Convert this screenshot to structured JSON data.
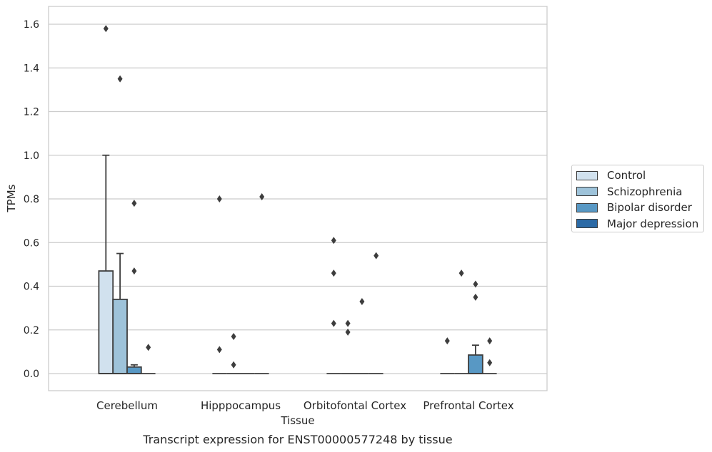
{
  "chart_data": {
    "type": "box",
    "title": "Transcript expression for ENST00000577248 by tissue",
    "xlabel": "Tissue",
    "ylabel": "TPMs",
    "ylim": [
      -0.08,
      1.66
    ],
    "yticks": [
      0.0,
      0.2,
      0.4,
      0.6,
      0.8,
      1.0,
      1.2,
      1.4,
      1.6
    ],
    "ytick_labels": [
      "0.0",
      "0.2",
      "0.4",
      "0.6",
      "0.8",
      "1.0",
      "1.2",
      "1.4",
      "1.6"
    ],
    "grid": "horizontal",
    "legend_position": "right",
    "categories": [
      "Cerebellum",
      "Hipppocampus",
      "Orbitofontal Cortex",
      "Prefrontal Cortex"
    ],
    "series": [
      {
        "name": "Control",
        "color": "#d1e1ee",
        "boxes": [
          {
            "q1": 0,
            "median": 0,
            "q3": 0.47,
            "whisker_low": 0,
            "whisker_high": 1.0,
            "outliers": [
              1.58
            ]
          },
          {
            "q1": 0,
            "median": 0,
            "q3": 0,
            "whisker_low": 0,
            "whisker_high": 0,
            "outliers": [
              0.8,
              0.11
            ]
          },
          {
            "q1": 0,
            "median": 0,
            "q3": 0,
            "whisker_low": 0,
            "whisker_high": 0,
            "outliers": [
              0.61,
              0.46,
              0.23
            ]
          },
          {
            "q1": 0,
            "median": 0,
            "q3": 0,
            "whisker_low": 0,
            "whisker_high": 0,
            "outliers": [
              0.15
            ]
          }
        ]
      },
      {
        "name": "Schizophrenia",
        "color": "#9ec3da",
        "boxes": [
          {
            "q1": 0,
            "median": 0,
            "q3": 0.34,
            "whisker_low": 0,
            "whisker_high": 0.55,
            "outliers": [
              1.35
            ]
          },
          {
            "q1": 0,
            "median": 0,
            "q3": 0,
            "whisker_low": 0,
            "whisker_high": 0,
            "outliers": [
              0.17,
              0.04
            ]
          },
          {
            "q1": 0,
            "median": 0,
            "q3": 0,
            "whisker_low": 0,
            "whisker_high": 0,
            "outliers": [
              0.23,
              0.19
            ]
          },
          {
            "q1": 0,
            "median": 0,
            "q3": 0,
            "whisker_low": 0,
            "whisker_high": 0,
            "outliers": [
              0.46
            ]
          }
        ]
      },
      {
        "name": "Bipolar disorder",
        "color": "#5898c4",
        "boxes": [
          {
            "q1": 0,
            "median": 0,
            "q3": 0.03,
            "whisker_low": 0,
            "whisker_high": 0.04,
            "outliers": [
              0.78,
              0.47
            ]
          },
          {
            "q1": 0,
            "median": 0,
            "q3": 0,
            "whisker_low": 0,
            "whisker_high": 0,
            "outliers": []
          },
          {
            "q1": 0,
            "median": 0,
            "q3": 0,
            "whisker_low": 0,
            "whisker_high": 0,
            "outliers": [
              0.33
            ]
          },
          {
            "q1": 0,
            "median": 0,
            "q3": 0.085,
            "whisker_low": 0,
            "whisker_high": 0.13,
            "outliers": [
              0.41,
              0.35
            ]
          }
        ]
      },
      {
        "name": "Major depression",
        "color": "#2b6aa6",
        "boxes": [
          {
            "q1": 0,
            "median": 0,
            "q3": 0,
            "whisker_low": 0,
            "whisker_high": 0,
            "outliers": [
              0.12
            ]
          },
          {
            "q1": 0,
            "median": 0,
            "q3": 0,
            "whisker_low": 0,
            "whisker_high": 0,
            "outliers": [
              0.81
            ]
          },
          {
            "q1": 0,
            "median": 0,
            "q3": 0,
            "whisker_low": 0,
            "whisker_high": 0,
            "outliers": [
              0.54
            ]
          },
          {
            "q1": 0,
            "median": 0,
            "q3": 0,
            "whisker_low": 0,
            "whisker_high": 0,
            "outliers": [
              0.15,
              0.05
            ]
          }
        ]
      }
    ]
  }
}
